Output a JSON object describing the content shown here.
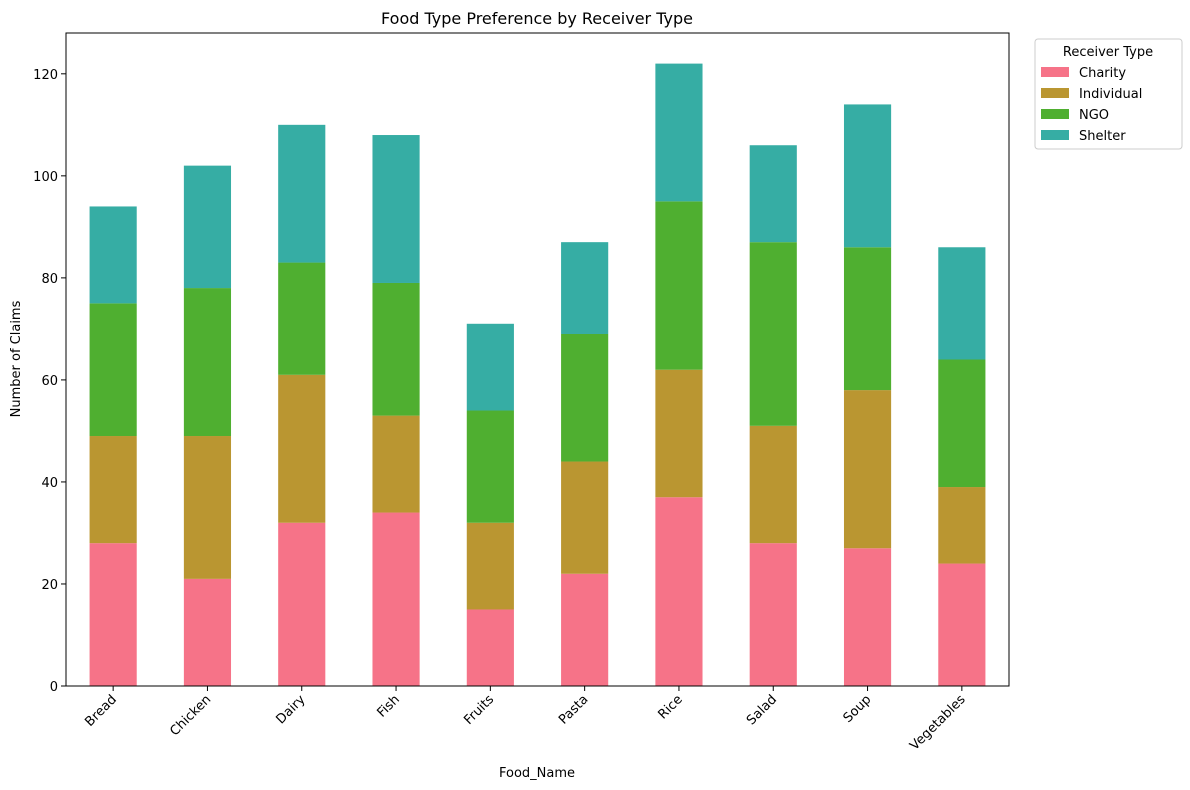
{
  "chart_data": {
    "type": "bar",
    "stacked": true,
    "title": "Food Type Preference by Receiver Type",
    "xlabel": "Food_Name",
    "ylabel": "Number of Claims",
    "categories": [
      "Bread",
      "Chicken",
      "Dairy",
      "Fish",
      "Fruits",
      "Pasta",
      "Rice",
      "Salad",
      "Soup",
      "Vegetables"
    ],
    "series": [
      {
        "name": "Charity",
        "color": "#f67388",
        "values": [
          28,
          21,
          32,
          34,
          15,
          22,
          37,
          28,
          27,
          24
        ]
      },
      {
        "name": "Individual",
        "color": "#ba9631",
        "values": [
          21,
          28,
          29,
          19,
          17,
          22,
          25,
          23,
          31,
          15
        ]
      },
      {
        "name": "NGO",
        "color": "#4faf30",
        "values": [
          26,
          29,
          22,
          26,
          22,
          25,
          33,
          36,
          28,
          25
        ]
      },
      {
        "name": "Shelter",
        "color": "#36ada4",
        "values": [
          19,
          24,
          27,
          29,
          17,
          18,
          27,
          19,
          28,
          22
        ]
      }
    ],
    "ylim": [
      0,
      128
    ],
    "yticks": [
      0,
      20,
      40,
      60,
      80,
      100,
      120
    ],
    "grid": false,
    "legend": {
      "title": "Receiver Type",
      "placement": "outside-top-right"
    }
  }
}
